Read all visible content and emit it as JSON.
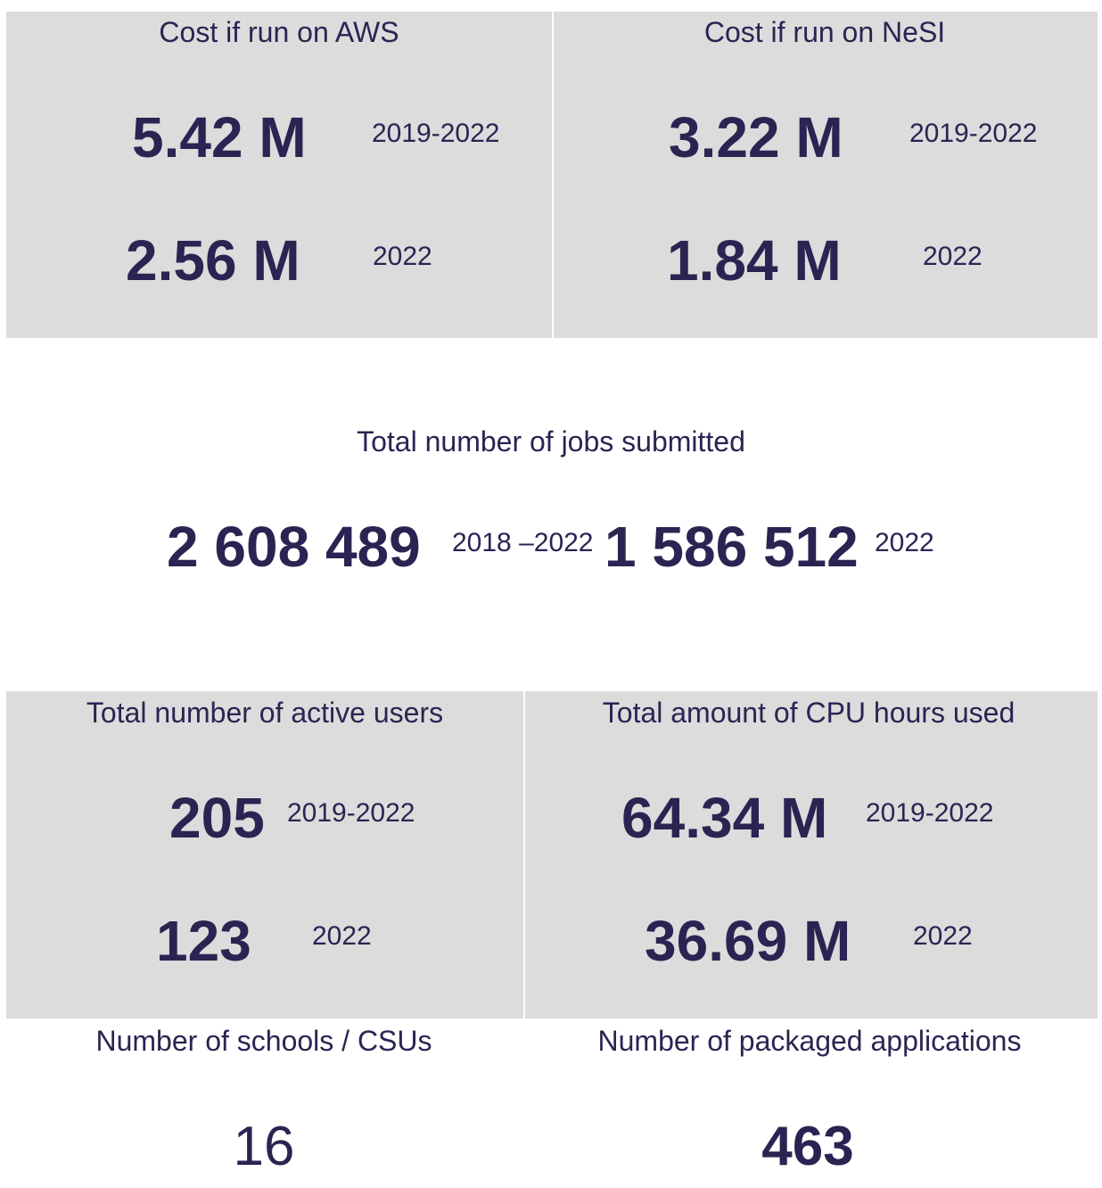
{
  "aws": {
    "title": "Cost if run on AWS",
    "total_value": "5.42 M",
    "total_period": "2019-2022",
    "year_value": "2.56 M",
    "year_period": "2022"
  },
  "nesi": {
    "title": "Cost if run on NeSI",
    "total_value": "3.22 M",
    "total_period": "2019-2022",
    "year_value": "1.84 M",
    "year_period": "2022"
  },
  "jobs": {
    "title": "Total number of jobs submitted",
    "total_value": "2 608 489",
    "total_period": "2018 –2022",
    "year_value": "1 586 512",
    "year_period": "2022"
  },
  "users": {
    "title": "Total number of active users",
    "total_value": "205",
    "total_period": "2019-2022",
    "year_value": "123",
    "year_period": "2022"
  },
  "cpu": {
    "title": "Total amount of CPU hours used",
    "total_value": "64.34 M",
    "total_period": "2019-2022",
    "year_value": "36.69 M",
    "year_period": "2022"
  },
  "schools": {
    "title": "Number of schools / CSUs",
    "value": "16"
  },
  "apps": {
    "title": "Number of packaged applications",
    "value": "463"
  },
  "colors": {
    "panel_background": "#dcdcdc",
    "text": "#2b2452"
  }
}
